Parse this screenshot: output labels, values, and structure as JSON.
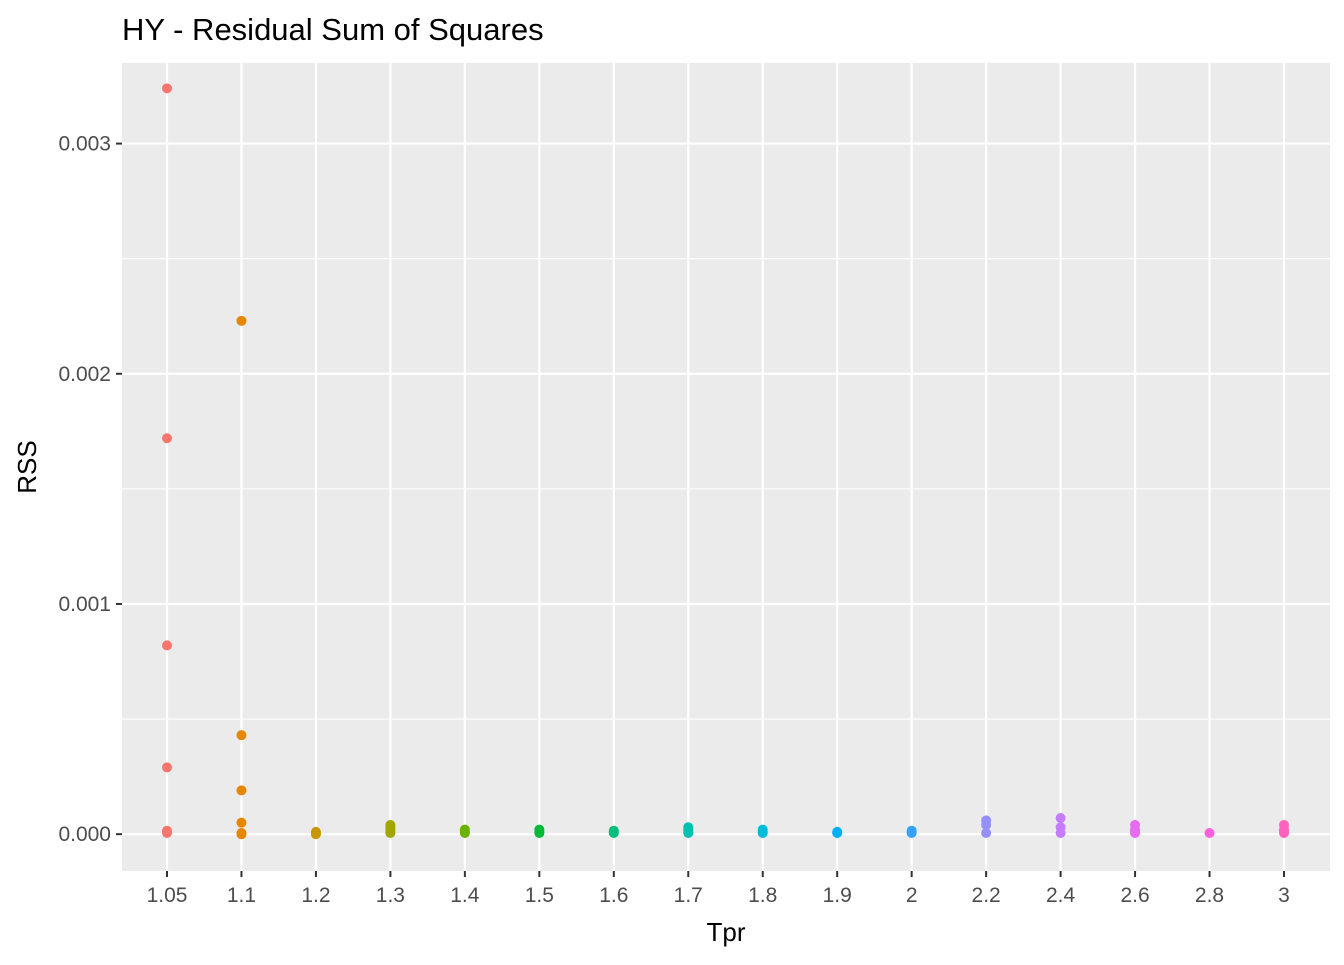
{
  "chart_data": {
    "type": "scatter",
    "title": "HY - Residual Sum of Squares",
    "xlabel": "Tpr",
    "ylabel": "RSS",
    "x_scale": "categorical",
    "categories": [
      "1.05",
      "1.1",
      "1.2",
      "1.3",
      "1.4",
      "1.5",
      "1.6",
      "1.7",
      "1.8",
      "1.9",
      "2",
      "2.2",
      "2.4",
      "2.6",
      "2.8",
      "3"
    ],
    "ylim": [
      -0.00016,
      0.00335
    ],
    "yticks": [
      {
        "value": 0.0,
        "label": "0.000"
      },
      {
        "value": 0.001,
        "label": "0.001"
      },
      {
        "value": 0.002,
        "label": "0.002"
      },
      {
        "value": 0.003,
        "label": "0.003"
      }
    ],
    "grid": true,
    "legend": "none",
    "background": "#EBEBEB",
    "grid_color": "#FFFFFF",
    "series": [
      {
        "category": "1.05",
        "color": "#F8766D",
        "values": [
          0.00324,
          0.00172,
          0.00082,
          0.00029,
          1.5e-05,
          1e-05,
          5e-06
        ]
      },
      {
        "category": "1.1",
        "color": "#E58700",
        "values": [
          0.00223,
          0.00043,
          0.00019,
          5e-05,
          5e-06,
          0.0
        ]
      },
      {
        "category": "1.2",
        "color": "#C99800",
        "values": [
          1e-05,
          5e-06,
          0.0
        ]
      },
      {
        "category": "1.3",
        "color": "#A3A500",
        "values": [
          4e-05,
          3e-05,
          2e-05,
          1e-05,
          5e-06
        ]
      },
      {
        "category": "1.4",
        "color": "#6BB100",
        "values": [
          2e-05,
          1e-05,
          5e-06
        ]
      },
      {
        "category": "1.5",
        "color": "#00BA38",
        "values": [
          2e-05,
          1e-05,
          5e-06
        ]
      },
      {
        "category": "1.6",
        "color": "#00BF7D",
        "values": [
          1.5e-05,
          1e-05,
          5e-06
        ]
      },
      {
        "category": "1.7",
        "color": "#00C0AF",
        "values": [
          3e-05,
          2e-05,
          1e-05,
          5e-06
        ]
      },
      {
        "category": "1.8",
        "color": "#00BCD8",
        "values": [
          2e-05,
          1e-05,
          5e-06
        ]
      },
      {
        "category": "1.9",
        "color": "#00B0F6",
        "values": [
          1e-05,
          5e-06
        ]
      },
      {
        "category": "2",
        "color": "#35A2FF",
        "values": [
          1.5e-05,
          1e-05,
          5e-06
        ]
      },
      {
        "category": "2.2",
        "color": "#9590FF",
        "values": [
          6e-05,
          4e-05,
          5e-06
        ]
      },
      {
        "category": "2.4",
        "color": "#C77CFF",
        "values": [
          7e-05,
          3e-05,
          5e-06
        ]
      },
      {
        "category": "2.6",
        "color": "#E76BF3",
        "values": [
          4e-05,
          2e-05,
          1e-05,
          5e-06
        ]
      },
      {
        "category": "2.8",
        "color": "#FA62DB",
        "values": [
          5e-06
        ]
      },
      {
        "category": "3",
        "color": "#FF62BC",
        "values": [
          4e-05,
          2e-05,
          1e-05,
          5e-06
        ]
      }
    ]
  }
}
